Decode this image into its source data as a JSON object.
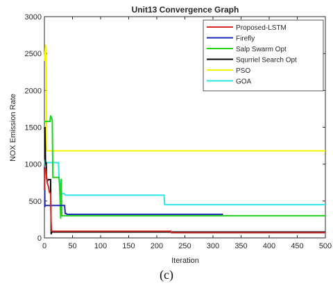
{
  "chart_data": {
    "type": "line",
    "title": "Unit13 Convergence Graph",
    "xlabel": "Iteration",
    "ylabel": "NOX Emission Rate",
    "xlim": [
      0,
      500
    ],
    "ylim": [
      0,
      3000
    ],
    "x_ticks": [
      "0",
      "50",
      "100",
      "150",
      "200",
      "250",
      "300",
      "350",
      "400",
      "450",
      "500"
    ],
    "y_ticks": [
      "0",
      "500",
      "1000",
      "1500",
      "2000",
      "2500",
      "3000"
    ],
    "legend_position": "top-right",
    "grid": false,
    "series": [
      {
        "name": "Proposed-LSTM",
        "color": "#d62728",
        "x": [
          0,
          1,
          3,
          5,
          7,
          9,
          11,
          12,
          13,
          14,
          225,
          226,
          500
        ],
        "y": [
          650,
          950,
          900,
          750,
          700,
          620,
          600,
          200,
          90,
          90,
          90,
          70,
          70
        ]
      },
      {
        "name": "Firefly",
        "color": "#1f2bb4",
        "x": [
          0,
          1,
          2,
          36,
          37,
          39,
          40,
          318
        ],
        "y": [
          960,
          430,
          440,
          440,
          330,
          330,
          320,
          320
        ]
      },
      {
        "name": "Salp Swarm Opt",
        "color": "#1ed21e",
        "x": [
          0,
          1,
          2,
          10,
          11,
          14,
          15,
          26,
          27,
          29,
          30,
          31,
          32,
          500
        ],
        "y": [
          1560,
          1580,
          1580,
          1580,
          1660,
          1600,
          820,
          820,
          700,
          260,
          800,
          300,
          300,
          300
        ]
      },
      {
        "name": "Squrriel Search Opt",
        "color": "#000000",
        "x": [
          0,
          1,
          2,
          3,
          4,
          6,
          7,
          11,
          12,
          13,
          14,
          500
        ],
        "y": [
          1480,
          1500,
          1000,
          1030,
          800,
          780,
          790,
          790,
          50,
          90,
          80,
          80
        ]
      },
      {
        "name": "PSO",
        "color": "#f5f500",
        "x": [
          0,
          1,
          2,
          3,
          4,
          500
        ],
        "y": [
          2400,
          2500,
          2620,
          2300,
          1180,
          1180
        ]
      },
      {
        "name": "GOA",
        "color": "#2ee6e6",
        "x": [
          0,
          1,
          3,
          4,
          5,
          25,
          26,
          27,
          30,
          35,
          38,
          213,
          214,
          500
        ],
        "y": [
          1060,
          1000,
          980,
          1020,
          1020,
          1020,
          800,
          780,
          600,
          600,
          580,
          580,
          450,
          450
        ]
      }
    ]
  },
  "caption": "(c)"
}
